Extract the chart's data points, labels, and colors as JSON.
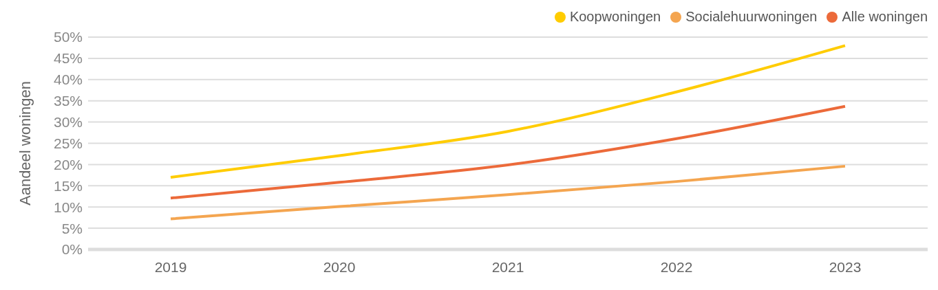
{
  "chart_data": {
    "type": "line",
    "ylabel": "Aandeel woningen",
    "categories": [
      "2019",
      "2020",
      "2021",
      "2022",
      "2023"
    ],
    "series": [
      {
        "name": "Koopwoningen",
        "color": "#ffcc00",
        "values": [
          17,
          22.1,
          27.8,
          37.1,
          48
        ]
      },
      {
        "name": "Socialehuurwoningen",
        "color": "#f4a550",
        "values": [
          7.2,
          10.1,
          12.9,
          16,
          19.6
        ]
      },
      {
        "name": "Alle woningen",
        "color": "#ec6a3a",
        "values": [
          12.1,
          15.8,
          19.9,
          26.1,
          33.7
        ]
      }
    ],
    "ylim": [
      0,
      50
    ],
    "yticks": [
      {
        "value": 0,
        "label": "0%"
      },
      {
        "value": 5,
        "label": "5%"
      },
      {
        "value": 10,
        "label": "10%"
      },
      {
        "value": 15,
        "label": "15%"
      },
      {
        "value": 20,
        "label": "20%"
      },
      {
        "value": 25,
        "label": "25%"
      },
      {
        "value": 30,
        "label": "30%"
      },
      {
        "value": 35,
        "label": "35%"
      },
      {
        "value": 40,
        "label": "40%"
      },
      {
        "value": 45,
        "label": "45%"
      },
      {
        "value": 50,
        "label": "50%"
      }
    ],
    "grid": "y",
    "legend": "top right",
    "marker": "none",
    "line_style": "solid"
  }
}
